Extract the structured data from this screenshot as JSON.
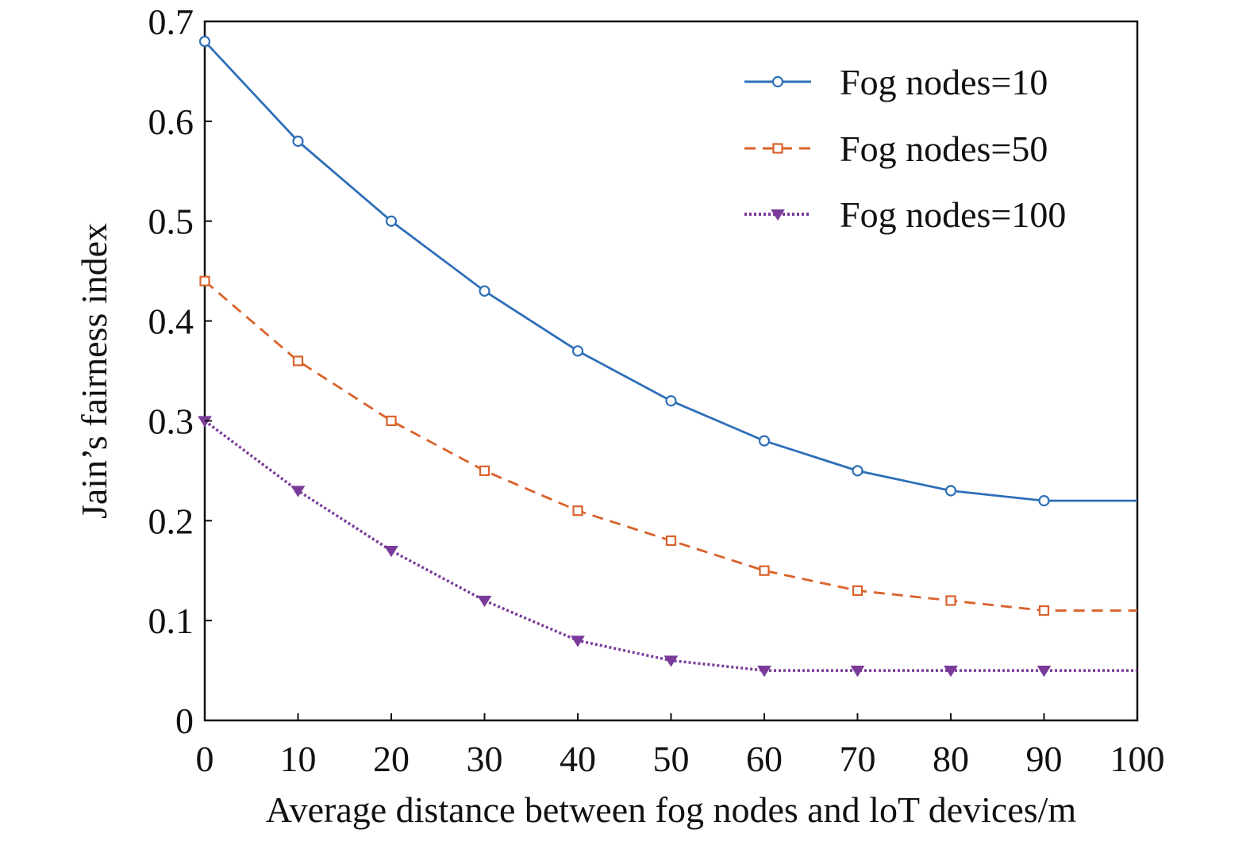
{
  "chart_data": {
    "type": "line",
    "title": "",
    "xlabel": "Average distance between fog nodes and loT devices/m",
    "ylabel": "Jain’s fairness index",
    "xlim": [
      0,
      100
    ],
    "ylim": [
      0,
      0.7
    ],
    "xticks": [
      "0",
      "10",
      "20",
      "30",
      "40",
      "50",
      "60",
      "70",
      "80",
      "90",
      "100"
    ],
    "yticks": [
      "0",
      "0.1",
      "0.2",
      "0.3",
      "0.4",
      "0.5",
      "0.6",
      "0.7"
    ],
    "grid": false,
    "legend_position": "top-right",
    "x": [
      0,
      10,
      20,
      30,
      40,
      50,
      60,
      70,
      80,
      90,
      100
    ],
    "series": [
      {
        "name": "Fog nodes=10",
        "color": "#2e6fb8",
        "line_style": "solid",
        "marker": "circle",
        "values": [
          0.68,
          0.58,
          0.5,
          0.43,
          0.37,
          0.32,
          0.28,
          0.25,
          0.23,
          0.22,
          0.22
        ]
      },
      {
        "name": "Fog nodes=50",
        "color": "#d9622b",
        "line_style": "dashed",
        "marker": "square",
        "values": [
          0.44,
          0.36,
          0.3,
          0.25,
          0.21,
          0.18,
          0.15,
          0.13,
          0.12,
          0.11,
          0.11
        ]
      },
      {
        "name": "Fog nodes=100",
        "color": "#7a3b9a",
        "line_style": "dotted",
        "marker": "triangle-down",
        "values": [
          0.3,
          0.23,
          0.17,
          0.12,
          0.08,
          0.06,
          0.05,
          0.05,
          0.05,
          0.05,
          0.05
        ]
      }
    ]
  }
}
